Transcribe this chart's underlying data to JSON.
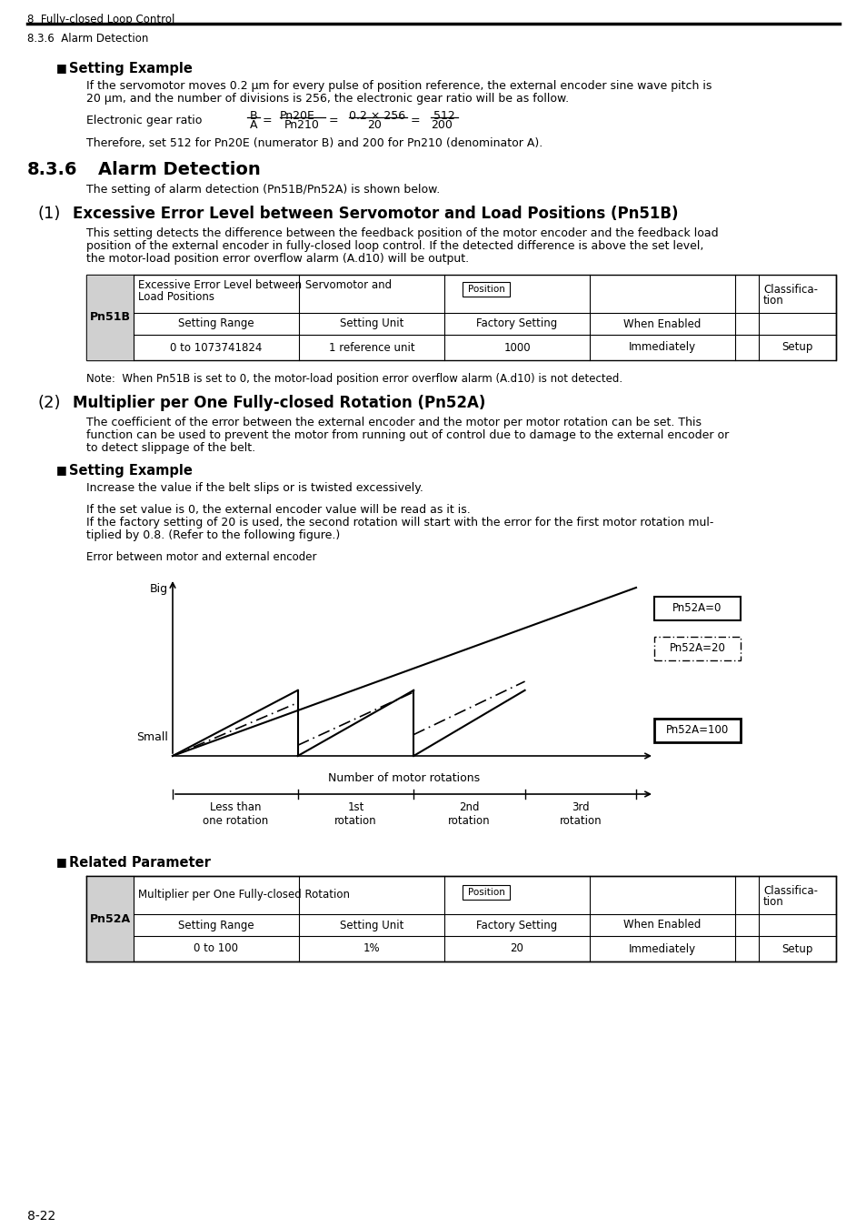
{
  "page_header_left": "8  Fully-closed Loop Control",
  "section_header": "8.3.6  Alarm Detection",
  "bg_color": "#ffffff",
  "page_number": "8-22",
  "section1_bullet": "■",
  "section1_bullet_text": "Setting Example",
  "section1_para1a": "If the servomotor moves 0.2 μm for every pulse of position reference, the external encoder sine wave pitch is",
  "section1_para1b": "20 μm, and the number of divisions is 256, the electronic gear ratio will be as follow.",
  "section1_formula_label": "Electronic gear ratio",
  "section1_para2": "Therefore, set 512 for Pn20E (numerator B) and 200 for Pn210 (denominator A).",
  "section836_num": "8.3.6",
  "section836_title": "Alarm Detection",
  "section836_intro": "The setting of alarm detection (Pn51B/Pn52A) is shown below.",
  "subsec1_num": "(1)",
  "subsec1_title": "Excessive Error Level between Servomotor and Load Positions (Pn51B)",
  "subsec1_para1": "This setting detects the difference between the feedback position of the motor encoder and the feedback load",
  "subsec1_para2": "position of the external encoder in fully-closed loop control. If the detected difference is above the set level,",
  "subsec1_para3": "the motor-load position error overflow alarm (A.d10) will be output.",
  "table1_param": "Pn51B",
  "table1_col1_header": "Excessive Error Level between Servomotor and",
  "table1_col1_header2": "Load Positions",
  "table1_badge": "Position",
  "table1_classif": "Classifica-",
  "table1_classif2": "tion",
  "table1_row1": [
    "Setting Range",
    "Setting Unit",
    "Factory Setting",
    "When Enabled"
  ],
  "table1_row2": [
    "0 to 1073741824",
    "1 reference unit",
    "1000",
    "Immediately",
    "Setup"
  ],
  "table1_note": "Note:  When Pn51B is set to 0, the motor-load position error overflow alarm (A.d10) is not detected.",
  "subsec2_num": "(2)",
  "subsec2_title": "Multiplier per One Fully-closed Rotation (Pn52A)",
  "subsec2_para1": "The coefficient of the error between the external encoder and the motor per motor rotation can be set. This",
  "subsec2_para2": "function can be used to prevent the motor from running out of control due to damage to the external encoder or",
  "subsec2_para3": "to detect slippage of the belt.",
  "section2_bullet": "■",
  "section2_bullet_text": "Setting Example",
  "section2_para1": "Increase the value if the belt slips or is twisted excessively.",
  "section2_para2a": "If the set value is 0, the external encoder value will be read as it is.",
  "section2_para2b": "If the factory setting of 20 is used, the second rotation will start with the error for the first motor rotation mul-",
  "section2_para2c": "tiplied by 0.8. (Refer to the following figure.)",
  "chart_ylabel": "Error between motor and external encoder",
  "chart_y_big": "Big",
  "chart_y_small": "Small",
  "chart_xlabel": "Number of motor rotations",
  "chart_x_labels": [
    "Less than\none rotation",
    "1st\nrotation",
    "2nd\nrotation",
    "3rd\nrotation"
  ],
  "chart_label0": "Pn52A=0",
  "chart_label20": "Pn52A=20",
  "chart_label100": "Pn52A=100",
  "section3_bullet": "■",
  "section3_bullet_text": "Related Parameter",
  "table2_param": "Pn52A",
  "table2_col1_header": "Multiplier per One Fully-closed Rotation",
  "table2_badge": "Position",
  "table2_classif": "Classifica-",
  "table2_classif2": "tion",
  "table2_row1": [
    "Setting Range",
    "Setting Unit",
    "Factory Setting",
    "When Enabled"
  ],
  "table2_row2": [
    "0 to 100",
    "1%",
    "20",
    "Immediately",
    "Setup"
  ]
}
